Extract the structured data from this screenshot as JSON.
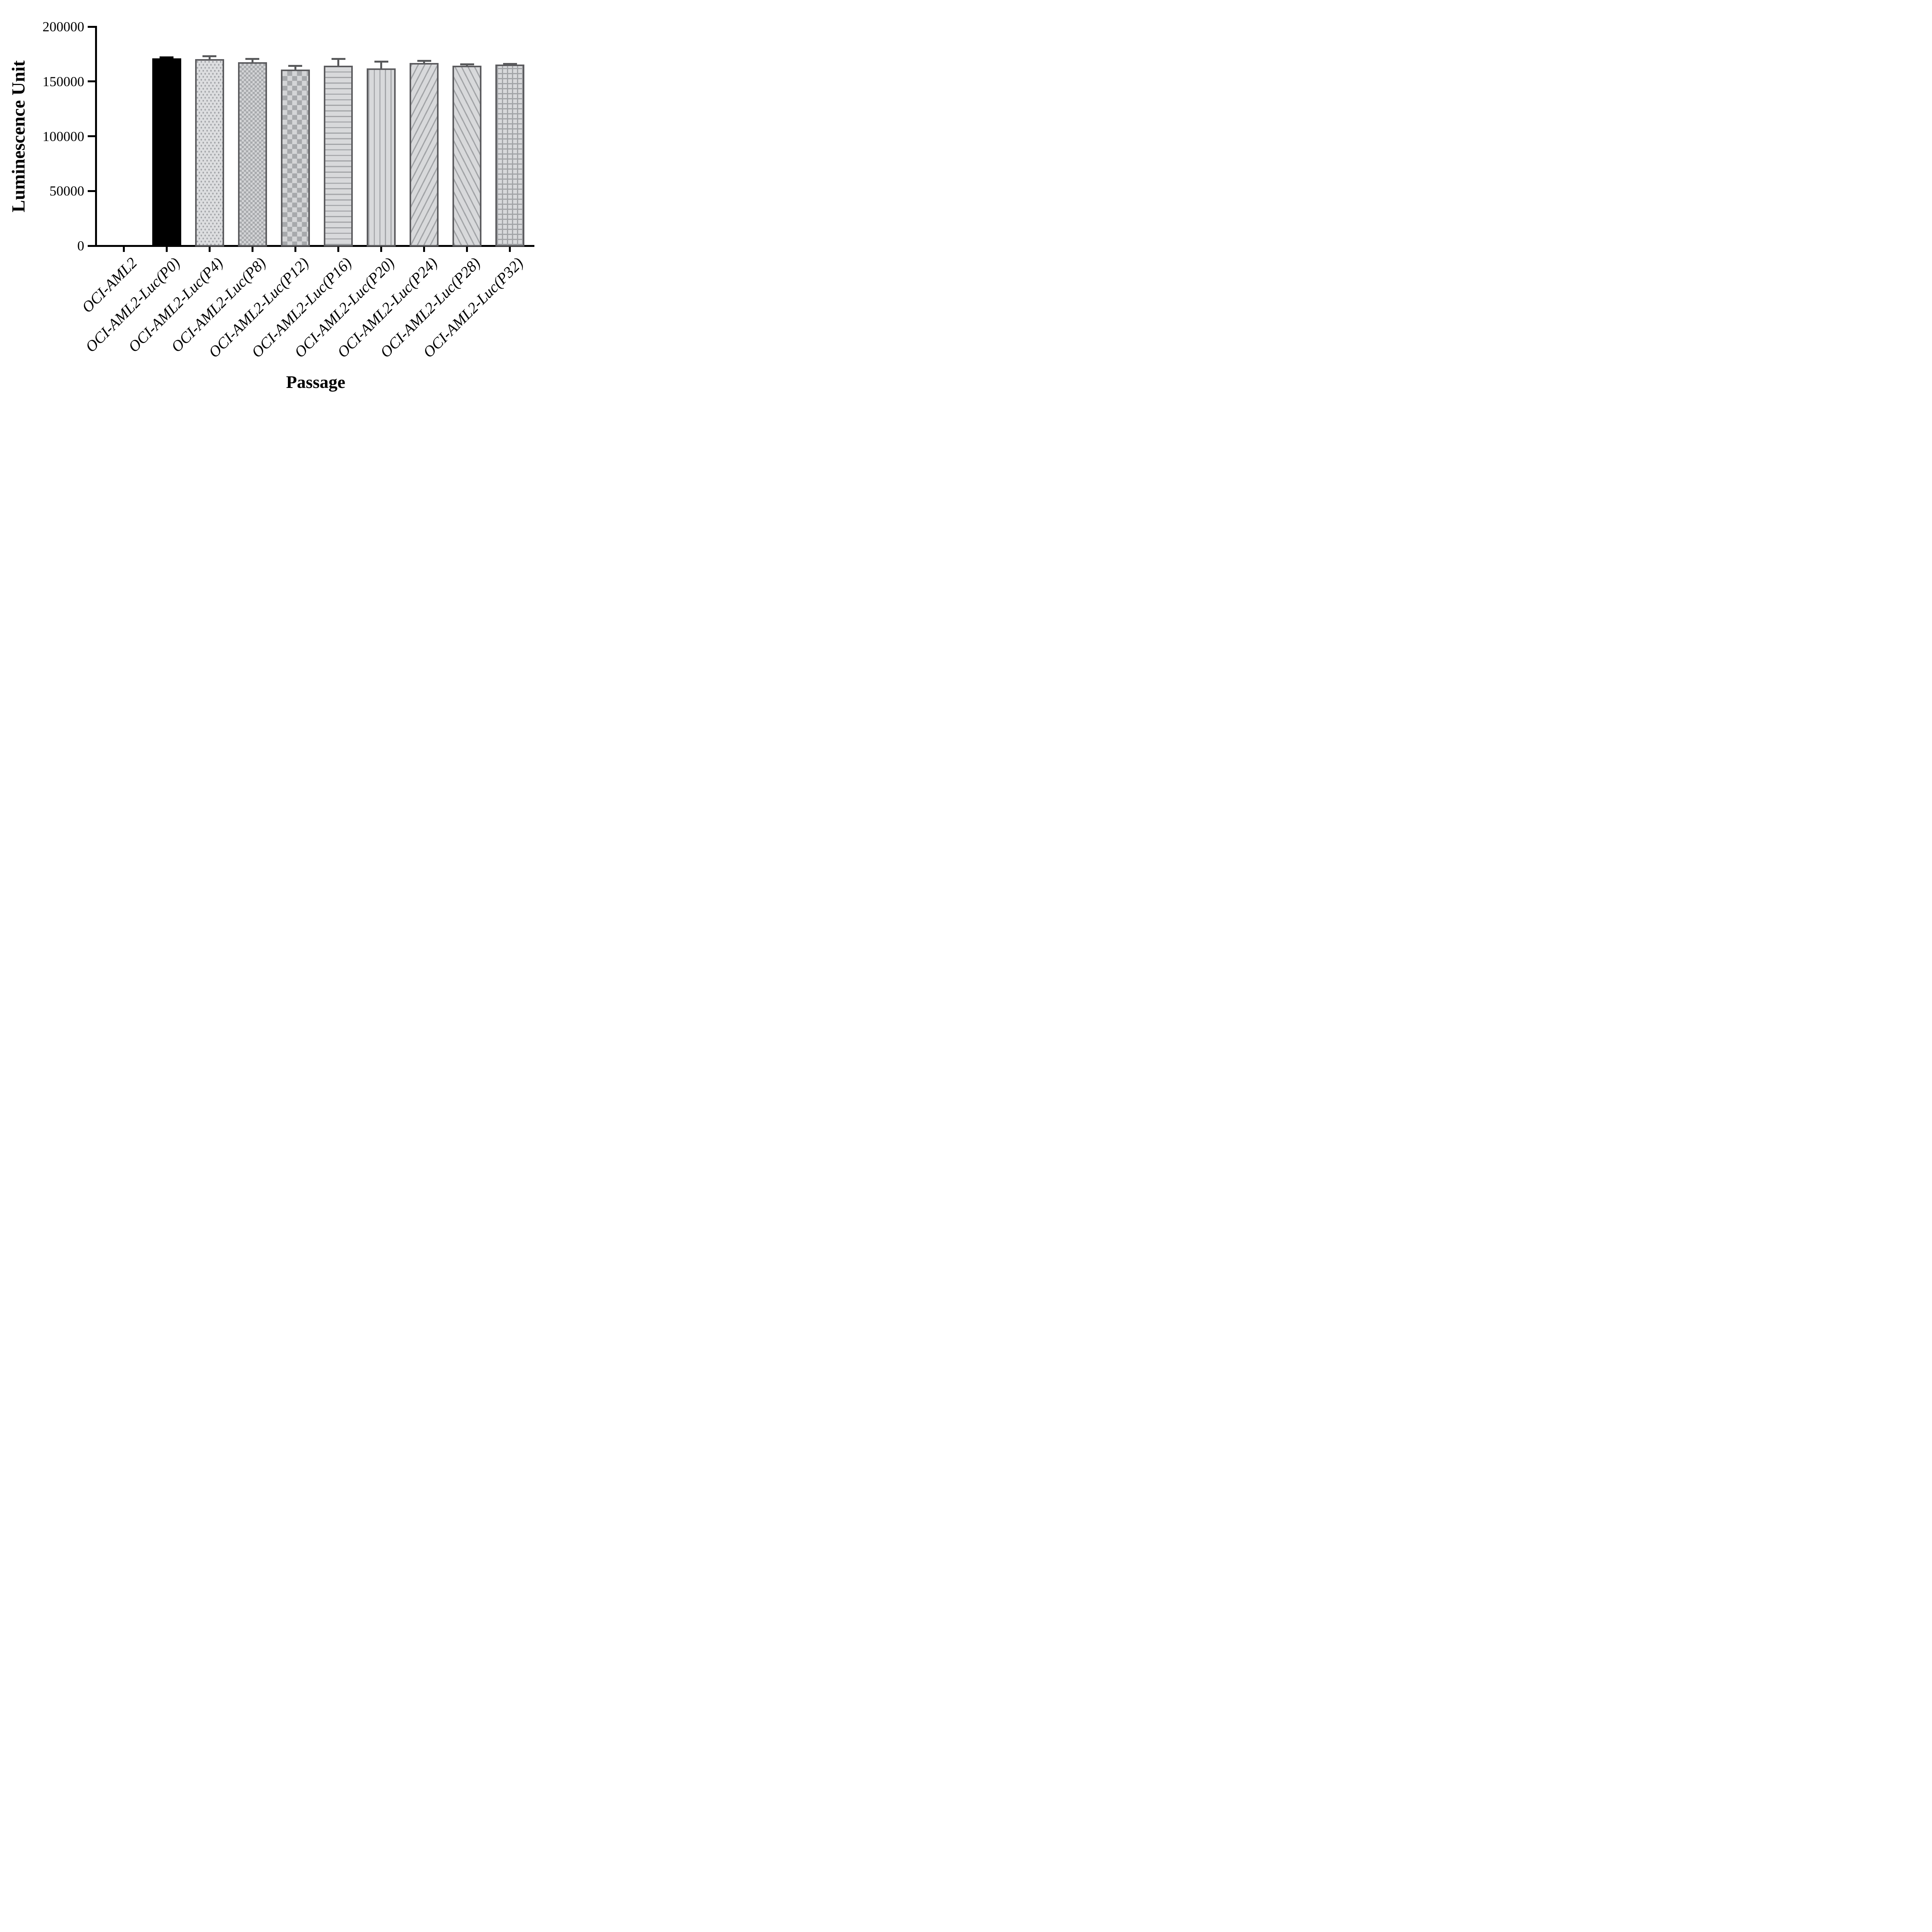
{
  "figure": {
    "background": "#ffffff"
  },
  "colors": {
    "axis": "#000000",
    "bar_border": "#5B5B5E",
    "pattern_fg": "#A2A4A7",
    "pattern_bg": "#D8D9DB",
    "error_bar": "#58595B",
    "black_bar": "#000000"
  },
  "chart_data": {
    "type": "bar",
    "title": "",
    "xlabel": "Passage",
    "ylabel": "Luminescence Unit",
    "ylim": [
      0,
      200000
    ],
    "yticks": [
      0,
      50000,
      100000,
      150000,
      200000
    ],
    "ytick_labels": [
      "0",
      "50000",
      "100000",
      "150000",
      "200000"
    ],
    "grid": false,
    "legend_position": "none",
    "categories": [
      "OCI-AML2",
      "OCI-AML2-Luc(P0)",
      "OCI-AML2-Luc(P4)",
      "OCI-AML2-Luc(P8)",
      "OCI-AML2-Luc(P12)",
      "OCI-AML2-Luc(P16)",
      "OCI-AML2-Luc(P20)",
      "OCI-AML2-Luc(P24)",
      "OCI-AML2-Luc(P28)",
      "OCI-AML2-Luc(P32)"
    ],
    "values": [
      0,
      171000,
      170500,
      167500,
      161000,
      164500,
      162000,
      167000,
      164500,
      165500
    ],
    "error_sd": [
      0,
      1000,
      2400,
      2900,
      3200,
      5900,
      6200,
      1900,
      1000,
      600
    ],
    "bar_patterns": [
      "none",
      "solid-black",
      "dots",
      "checker-fine",
      "checker-coarse",
      "horizontal-lines",
      "vertical-lines",
      "diagonal-up",
      "diagonal-down",
      "grid"
    ]
  },
  "layout_note": "single bar series, error bars upward only with caps, first category has zero/no bar"
}
